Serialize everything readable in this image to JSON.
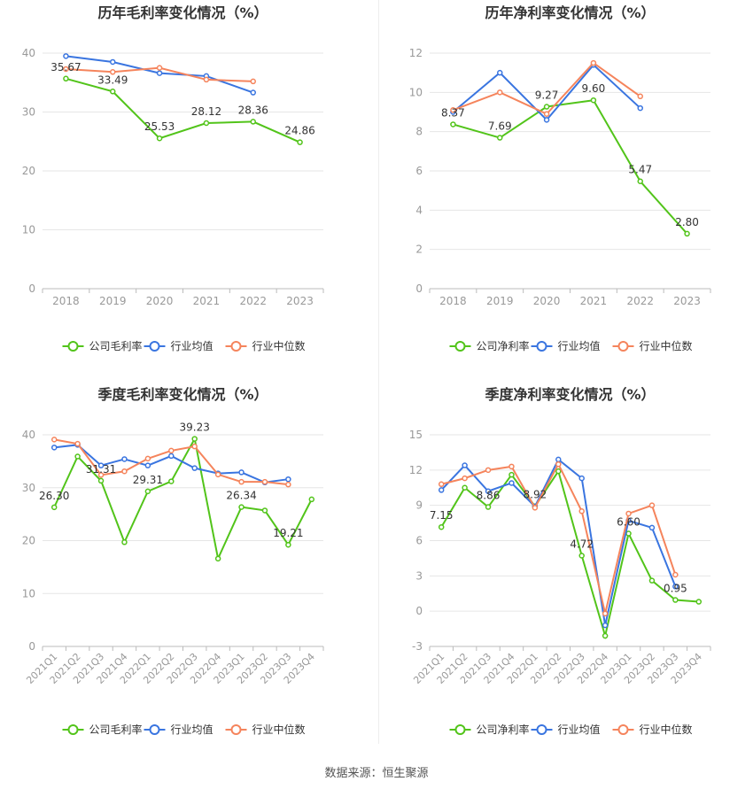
{
  "source": "数据来源：恒生聚源",
  "colors": {
    "company": "#52c41a",
    "mean": "#3a75e0",
    "median": "#f5845c",
    "grid": "#e6e6e6",
    "axis": "#999999"
  },
  "chart_data": [
    {
      "type": "line",
      "title": "历年毛利率变化情况（%）",
      "categories": [
        "2018",
        "2019",
        "2020",
        "2021",
        "2022",
        "2023"
      ],
      "ylim": [
        0,
        40
      ],
      "yticks": [
        0,
        10,
        20,
        30,
        40
      ],
      "series": [
        {
          "name": "公司毛利率",
          "values": [
            35.67,
            33.49,
            25.53,
            28.12,
            28.36,
            24.86
          ],
          "labels": true
        },
        {
          "name": "行业均值",
          "values": [
            39.5,
            38.5,
            36.6,
            36.1,
            33.3,
            null
          ]
        },
        {
          "name": "行业中位数",
          "values": [
            37.3,
            36.8,
            37.5,
            35.5,
            35.2,
            null
          ]
        }
      ],
      "legend": "bottom",
      "grid": true
    },
    {
      "type": "line",
      "title": "历年净利率变化情况（%）",
      "categories": [
        "2018",
        "2019",
        "2020",
        "2021",
        "2022",
        "2023"
      ],
      "ylim": [
        0,
        12
      ],
      "yticks": [
        0,
        2,
        4,
        6,
        8,
        10,
        12
      ],
      "series": [
        {
          "name": "公司净利率",
          "values": [
            8.37,
            7.69,
            9.27,
            9.6,
            5.47,
            2.8
          ],
          "labels": true
        },
        {
          "name": "行业均值",
          "values": [
            9.0,
            11.0,
            8.6,
            11.4,
            9.2,
            null
          ]
        },
        {
          "name": "行业中位数",
          "values": [
            9.1,
            10.0,
            8.9,
            11.5,
            9.8,
            null
          ]
        }
      ],
      "legend": "bottom",
      "grid": true
    },
    {
      "type": "line",
      "title": "季度毛利率变化情况（%）",
      "categories": [
        "2021Q1",
        "2021Q2",
        "2021Q3",
        "2021Q4",
        "2022Q1",
        "2022Q2",
        "2022Q3",
        "2022Q4",
        "2023Q1",
        "2023Q2",
        "2023Q3",
        "2023Q4"
      ],
      "ylim": [
        0,
        40
      ],
      "yticks": [
        0,
        10,
        20,
        30,
        40
      ],
      "series": [
        {
          "name": "公司毛利率",
          "values": [
            26.3,
            35.9,
            31.31,
            19.7,
            29.31,
            31.2,
            39.23,
            16.6,
            26.34,
            25.7,
            19.21,
            27.8
          ],
          "label_values": [
            "26.30",
            null,
            "31.31",
            null,
            "29.31",
            null,
            "39.23",
            null,
            "26.34",
            null,
            "19.21",
            null
          ]
        },
        {
          "name": "行业均值",
          "values": [
            37.6,
            38.1,
            34.2,
            35.4,
            34.2,
            36.0,
            33.7,
            32.7,
            32.9,
            31.0,
            31.6,
            null
          ]
        },
        {
          "name": "行业中位数",
          "values": [
            39.1,
            38.3,
            32.4,
            33.1,
            35.5,
            37.0,
            37.8,
            32.5,
            31.1,
            31.1,
            30.6,
            null
          ]
        }
      ],
      "legend": "bottom",
      "grid": true
    },
    {
      "type": "line",
      "title": "季度净利率变化情况（%）",
      "categories": [
        "2021Q1",
        "2021Q2",
        "2021Q3",
        "2021Q4",
        "2022Q1",
        "2022Q2",
        "2022Q3",
        "2022Q4",
        "2023Q1",
        "2023Q2",
        "2023Q3",
        "2023Q4"
      ],
      "ylim": [
        -3,
        15
      ],
      "yticks": [
        -3,
        0,
        3,
        6,
        9,
        12,
        15
      ],
      "series": [
        {
          "name": "公司净利率",
          "values": [
            7.15,
            10.5,
            8.86,
            11.6,
            8.92,
            11.9,
            4.72,
            -2.1,
            6.6,
            2.6,
            0.95,
            0.8
          ],
          "label_values": [
            "7.15",
            null,
            "8.86",
            null,
            "8.92",
            null,
            "4.72",
            null,
            "6.60",
            null,
            "0.95",
            null
          ]
        },
        {
          "name": "行业均值",
          "values": [
            10.3,
            12.4,
            10.2,
            10.9,
            8.9,
            12.9,
            11.3,
            -1.2,
            7.7,
            7.1,
            2.1,
            null
          ]
        },
        {
          "name": "行业中位数",
          "values": [
            10.8,
            11.3,
            12.0,
            12.3,
            8.8,
            12.5,
            8.5,
            -0.2,
            8.3,
            9.0,
            3.1,
            null
          ]
        }
      ],
      "legend": "bottom",
      "grid": true
    }
  ]
}
